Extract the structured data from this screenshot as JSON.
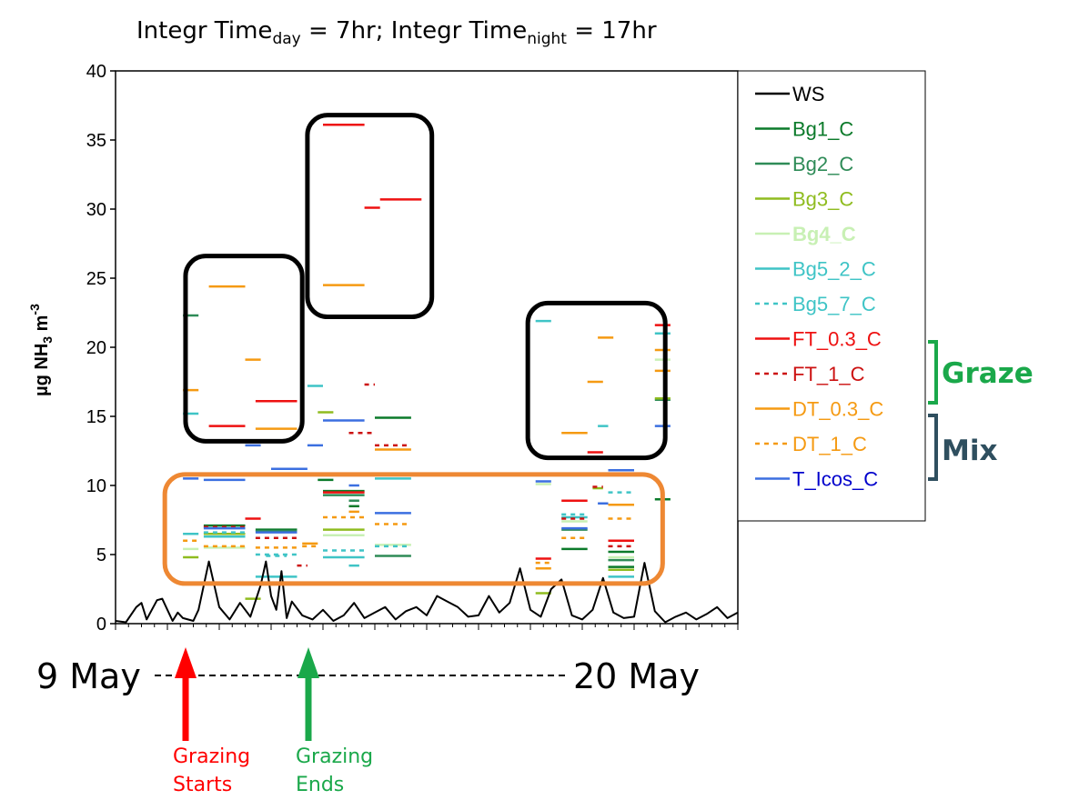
{
  "chart_data": {
    "type": "line",
    "title": {
      "part1": "Integr Time",
      "sub1": "day",
      "part2": " = 7hr; Integr Time",
      "sub2": "night",
      "part3": " = 17hr"
    },
    "ylabel": {
      "main": "µg NH",
      "sub": "3",
      "mid": " m",
      "sup": "-3"
    },
    "ylim": [
      0,
      40
    ],
    "yticks": [
      "0",
      "5",
      "10",
      "15",
      "20",
      "25",
      "30",
      "35",
      "40"
    ],
    "x_range_days": [
      0,
      12
    ],
    "x_start_label": "9 May",
    "x_end_label": "20 May",
    "legend_position": "right",
    "legend": [
      {
        "name": "WS",
        "color": "#000000",
        "dash": "solid"
      },
      {
        "name": "Bg1_C",
        "color": "#0b7a2a",
        "dash": "solid"
      },
      {
        "name": "Bg2_C",
        "color": "#2e8b57",
        "dash": "solid"
      },
      {
        "name": "Bg3_C",
        "color": "#8fbc1f",
        "dash": "solid"
      },
      {
        "name": "Bg4_C",
        "color": "#c8f0b4",
        "dash": "solid"
      },
      {
        "name": "Bg5_2_C",
        "color": "#3fc4c6",
        "dash": "solid"
      },
      {
        "name": "Bg5_7_C",
        "color": "#3fc4c6",
        "dash": "dotted"
      },
      {
        "name": "FT_0.3_C",
        "color": "#ee1111",
        "dash": "solid"
      },
      {
        "name": "FT_1_C",
        "color": "#cc1111",
        "dash": "dotted"
      },
      {
        "name": "DT_0.3_C",
        "color": "#f59a12",
        "dash": "solid"
      },
      {
        "name": "DT_1_C",
        "color": "#f59a12",
        "dash": "dotted"
      },
      {
        "name": "T_Icos_C",
        "color": "#3b6fe0",
        "dash": "solid"
      }
    ],
    "ws_series": {
      "name": "WS",
      "x_days": [
        0,
        0.2,
        0.4,
        0.5,
        0.6,
        0.8,
        0.9,
        1.0,
        1.1,
        1.2,
        1.3,
        1.5,
        1.6,
        1.8,
        2.0,
        2.2,
        2.4,
        2.6,
        2.8,
        2.9,
        3.0,
        3.1,
        3.2,
        3.3,
        3.4,
        3.6,
        3.8,
        4.0,
        4.2,
        4.4,
        4.6,
        4.8,
        5.0,
        5.2,
        5.4,
        5.6,
        5.8,
        6.0,
        6.2,
        6.4,
        6.6,
        6.8,
        7.0,
        7.2,
        7.4,
        7.6,
        7.8,
        8.0,
        8.2,
        8.4,
        8.6,
        8.8,
        9.0,
        9.2,
        9.4,
        9.6,
        9.8,
        10.0,
        10.2,
        10.4,
        10.6,
        10.8,
        11.0,
        11.2,
        11.4,
        11.6,
        11.8,
        12.0
      ],
      "y_values": [
        0.2,
        0.1,
        1.2,
        1.5,
        0.3,
        1.7,
        1.8,
        1.0,
        0.2,
        0.8,
        0.4,
        0.2,
        1.0,
        4.5,
        1.2,
        0.3,
        1.5,
        0.5,
        2.8,
        4.5,
        2.0,
        1.0,
        3.8,
        0.4,
        1.6,
        0.6,
        0.3,
        1.0,
        0.2,
        0.6,
        1.5,
        0.4,
        0.8,
        1.2,
        0.3,
        0.9,
        1.2,
        0.6,
        2.0,
        1.6,
        1.2,
        0.5,
        0.6,
        2.0,
        0.8,
        1.5,
        4.0,
        1.0,
        0.5,
        2.5,
        3.2,
        0.6,
        0.3,
        1.0,
        3.3,
        0.8,
        0.4,
        0.5,
        4.4,
        0.9,
        0.1,
        0.5,
        0.8,
        0.3,
        0.7,
        1.2,
        0.4,
        0.8
      ]
    },
    "annotations": {
      "groups": [
        {
          "label": "Graze",
          "color": "#1aa84a"
        },
        {
          "label": "Mix",
          "color": "#2f4f5f"
        }
      ],
      "arrows": [
        {
          "label_line1": "Grazing",
          "label_line2": "Starts",
          "color": "#ff0000",
          "day": 1.35
        },
        {
          "label_line1": "Grazing",
          "label_line2": "Ends",
          "color": "#1aa84a",
          "day": 3.65
        }
      ],
      "highlight_boxes": [
        {
          "color": "#000000",
          "x_days": [
            1.35,
            3.6
          ],
          "y_range": [
            13.2,
            26.6
          ]
        },
        {
          "color": "#000000",
          "x_days": [
            3.7,
            6.1
          ],
          "y_range": [
            22.2,
            36.8
          ]
        },
        {
          "color": "#000000",
          "x_days": [
            7.95,
            10.6
          ],
          "y_range": [
            12.0,
            23.2
          ]
        },
        {
          "color": "#ee8833",
          "x_days": [
            0.95,
            10.55
          ],
          "y_range": [
            2.9,
            10.8
          ]
        }
      ]
    },
    "series": [
      {
        "name": "Bg1_C",
        "segments": [
          [
            1.7,
            2.5,
            7.1
          ],
          [
            2.7,
            3.5,
            6.8
          ],
          [
            4.0,
            4.8,
            9.6
          ],
          [
            5.0,
            5.7,
            14.9
          ],
          [
            8.6,
            9.1,
            5.4
          ],
          [
            9.5,
            10.0,
            5.2
          ],
          [
            9.5,
            10.0,
            4.1
          ],
          [
            10.4,
            10.7,
            9.0
          ],
          [
            3.9,
            4.2,
            10.4
          ],
          [
            4.5,
            4.7,
            8.5
          ]
        ]
      },
      {
        "name": "Bg2_C",
        "segments": [
          [
            1.3,
            1.6,
            22.3
          ],
          [
            4.0,
            4.8,
            9.3
          ],
          [
            5.0,
            5.7,
            4.9
          ],
          [
            8.6,
            9.1,
            6.8
          ],
          [
            9.5,
            10.0,
            4.6
          ],
          [
            10.4,
            10.7,
            16.2
          ],
          [
            2.7,
            3.5,
            6.7
          ],
          [
            4.5,
            4.7,
            8.9
          ]
        ]
      },
      {
        "name": "Bg3_C",
        "segments": [
          [
            1.3,
            1.6,
            4.8
          ],
          [
            1.7,
            2.5,
            6.5
          ],
          [
            2.5,
            2.8,
            1.8
          ],
          [
            4.0,
            4.8,
            6.8
          ],
          [
            8.1,
            8.4,
            2.2
          ],
          [
            9.5,
            10.0,
            3.9
          ],
          [
            10.4,
            10.7,
            16.3
          ],
          [
            3.9,
            4.2,
            15.3
          ],
          [
            9.2,
            9.4,
            9.8
          ]
        ]
      },
      {
        "name": "Bg4_C",
        "segments": [
          [
            1.3,
            1.6,
            5.4
          ],
          [
            1.7,
            2.5,
            5.5
          ],
          [
            4.0,
            4.8,
            6.4
          ],
          [
            5.0,
            5.7,
            5.7
          ],
          [
            8.6,
            9.1,
            7.4
          ],
          [
            9.5,
            10.0,
            4.8
          ],
          [
            10.4,
            10.7,
            19.1
          ],
          [
            8.1,
            8.4,
            10.1
          ]
        ]
      },
      {
        "name": "Bg5_2_C",
        "segments": [
          [
            1.3,
            1.6,
            15.2
          ],
          [
            1.7,
            2.5,
            6.3
          ],
          [
            2.7,
            3.5,
            3.4
          ],
          [
            3.7,
            4.0,
            17.2
          ],
          [
            4.5,
            4.7,
            4.2
          ],
          [
            5.0,
            5.7,
            10.5
          ],
          [
            4.0,
            4.8,
            4.8
          ],
          [
            8.1,
            8.4,
            21.9
          ],
          [
            8.6,
            9.1,
            7.7
          ],
          [
            9.3,
            9.5,
            14.3
          ],
          [
            9.5,
            10.0,
            3.4
          ],
          [
            10.4,
            10.7,
            21.0
          ],
          [
            1.3,
            1.6,
            6.5
          ]
        ]
      },
      {
        "name": "Bg5_7_C",
        "segments": [
          [
            1.7,
            2.5,
            6.6
          ],
          [
            2.7,
            3.5,
            5.0
          ],
          [
            4.0,
            4.8,
            5.3
          ],
          [
            5.0,
            5.7,
            5.6
          ],
          [
            8.6,
            9.1,
            7.9
          ],
          [
            9.5,
            10.0,
            9.5
          ],
          [
            2.9,
            3.3,
            4.9
          ]
        ]
      },
      {
        "name": "FT_0.3_C",
        "segments": [
          [
            1.8,
            2.5,
            14.3
          ],
          [
            2.7,
            3.5,
            16.1
          ],
          [
            4.0,
            4.8,
            36.1
          ],
          [
            4.8,
            5.1,
            30.1
          ],
          [
            5.1,
            5.9,
            30.7
          ],
          [
            4.0,
            4.8,
            9.5
          ],
          [
            8.6,
            9.1,
            8.9
          ],
          [
            9.5,
            10.0,
            6.0
          ],
          [
            10.4,
            10.7,
            21.6
          ],
          [
            8.1,
            8.4,
            4.7
          ],
          [
            9.1,
            9.4,
            12.4
          ],
          [
            2.5,
            2.8,
            7.6
          ]
        ]
      },
      {
        "name": "FT_1_C",
        "segments": [
          [
            1.7,
            2.5,
            7.0
          ],
          [
            2.7,
            3.5,
            6.2
          ],
          [
            4.5,
            5.0,
            13.8
          ],
          [
            5.0,
            5.7,
            12.9
          ],
          [
            8.6,
            9.1,
            7.6
          ],
          [
            9.5,
            10.0,
            5.6
          ],
          [
            4.8,
            5.0,
            17.3
          ],
          [
            3.5,
            3.7,
            4.2
          ],
          [
            9.2,
            9.4,
            9.9
          ]
        ]
      },
      {
        "name": "DT_0.3_C",
        "segments": [
          [
            1.3,
            1.6,
            16.9
          ],
          [
            1.8,
            2.5,
            24.4
          ],
          [
            2.5,
            2.8,
            19.1
          ],
          [
            2.7,
            3.5,
            14.1
          ],
          [
            4.0,
            4.8,
            24.5
          ],
          [
            5.0,
            5.7,
            12.6
          ],
          [
            8.6,
            9.1,
            13.8
          ],
          [
            9.1,
            9.4,
            17.5
          ],
          [
            9.5,
            10.0,
            8.6
          ],
          [
            9.3,
            9.6,
            20.7
          ],
          [
            10.4,
            10.7,
            19.8
          ],
          [
            10.4,
            10.7,
            18.3
          ],
          [
            4.5,
            4.7,
            8.1
          ],
          [
            3.6,
            3.9,
            5.8
          ],
          [
            8.1,
            8.4,
            4.0
          ]
        ]
      },
      {
        "name": "DT_1_C",
        "segments": [
          [
            1.3,
            1.6,
            6.0
          ],
          [
            1.7,
            2.5,
            5.6
          ],
          [
            2.7,
            3.5,
            5.5
          ],
          [
            4.0,
            4.8,
            7.7
          ],
          [
            5.0,
            5.7,
            7.2
          ],
          [
            8.6,
            9.1,
            6.2
          ],
          [
            9.5,
            10.0,
            7.6
          ],
          [
            3.6,
            3.9,
            5.6
          ],
          [
            8.1,
            8.4,
            4.4
          ]
        ]
      },
      {
        "name": "T_Icos_C",
        "segments": [
          [
            1.3,
            1.6,
            10.5
          ],
          [
            1.7,
            2.5,
            10.4
          ],
          [
            2.5,
            2.8,
            12.9
          ],
          [
            3.0,
            3.7,
            11.2
          ],
          [
            3.7,
            4.0,
            12.9
          ],
          [
            4.0,
            4.8,
            14.7
          ],
          [
            4.5,
            4.7,
            10.0
          ],
          [
            5.0,
            5.7,
            8.0
          ],
          [
            8.1,
            8.4,
            10.3
          ],
          [
            8.6,
            9.1,
            6.9
          ],
          [
            9.5,
            10.0,
            11.1
          ],
          [
            9.3,
            9.5,
            8.7
          ],
          [
            10.4,
            10.7,
            14.3
          ],
          [
            1.7,
            2.5,
            6.9
          ],
          [
            2.7,
            3.5,
            6.6
          ]
        ]
      }
    ]
  }
}
